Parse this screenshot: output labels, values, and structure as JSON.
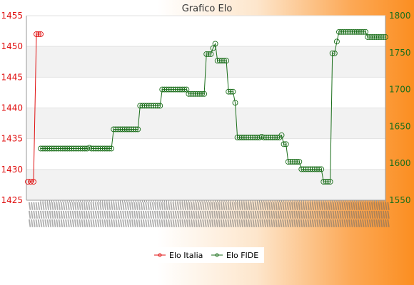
{
  "chart_data": {
    "type": "line",
    "title": "Grafico Elo",
    "xlabel": "",
    "ylabel_left": "",
    "ylabel_right": "",
    "grid": "horizontal bands",
    "legend_position": "bottom",
    "y_left": {
      "min": 1425,
      "max": 1455,
      "step": 5,
      "ticks": [
        "1425",
        "1430",
        "1435",
        "1440",
        "1445",
        "1450",
        "1455"
      ]
    },
    "y_right": {
      "min": 1550,
      "max": 1800,
      "step": 50,
      "ticks": [
        "1550",
        "1600",
        "1650",
        "1700",
        "1750",
        "1800"
      ]
    },
    "series": [
      {
        "name": "Elo Italia",
        "axis": "left",
        "color": "#e01010",
        "marker": "diamond",
        "values": [
          1428,
          1428,
          1428,
          1452,
          1452,
          1452
        ]
      },
      {
        "name": "Elo FIDE",
        "axis": "right",
        "color": "#1a6e1a",
        "marker": "circle",
        "segments": [
          {
            "count": 22,
            "value": 1620
          },
          {
            "count": 1,
            "value": 1621
          },
          {
            "count": 10,
            "value": 1620
          },
          {
            "count": 12,
            "value": 1646
          },
          {
            "count": 10,
            "value": 1678
          },
          {
            "count": 12,
            "value": 1700
          },
          {
            "count": 8,
            "value": 1694
          },
          {
            "count": 3,
            "value": 1748
          },
          {
            "count": 1,
            "value": 1756
          },
          {
            "count": 1,
            "value": 1762
          },
          {
            "count": 5,
            "value": 1739
          },
          {
            "count": 3,
            "value": 1697
          },
          {
            "count": 1,
            "value": 1682
          },
          {
            "count": 11,
            "value": 1635
          },
          {
            "count": 1,
            "value": 1636
          },
          {
            "count": 8,
            "value": 1635
          },
          {
            "count": 1,
            "value": 1638
          },
          {
            "count": 2,
            "value": 1626
          },
          {
            "count": 6,
            "value": 1602
          },
          {
            "count": 10,
            "value": 1592
          },
          {
            "count": 4,
            "value": 1575
          },
          {
            "count": 2,
            "value": 1749
          },
          {
            "count": 1,
            "value": 1765
          },
          {
            "count": 13,
            "value": 1778
          },
          {
            "count": 9,
            "value": 1771
          }
        ]
      }
    ]
  },
  "colors": {
    "left_axis": "#e01010",
    "right_axis": "#1a6e1a",
    "band": "#f2f2f2",
    "plot_bg": "#ffffff"
  }
}
